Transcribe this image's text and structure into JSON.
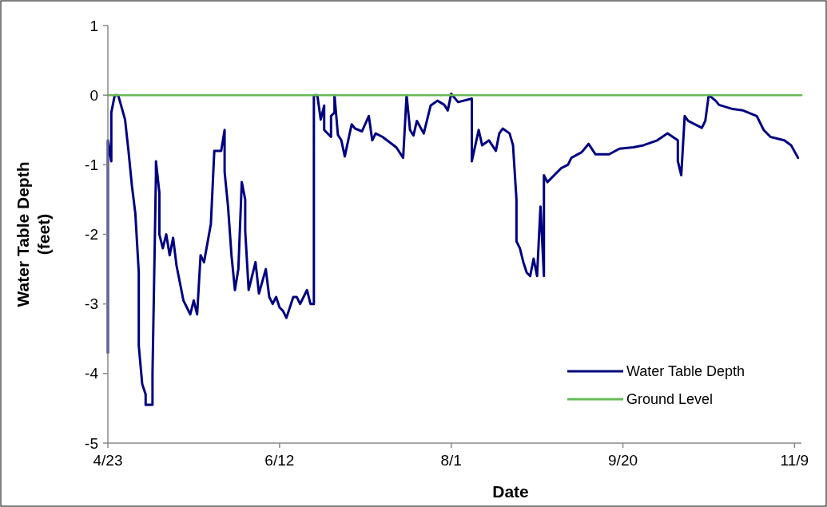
{
  "chart_data": {
    "type": "line",
    "xlabel": "Date",
    "ylabel": "Water Table Depth (feet)",
    "xlim": [
      "--04-23",
      "--11-11"
    ],
    "xticks": [
      {
        "value": "--04-23",
        "label": "4/23"
      },
      {
        "value": "--06-12",
        "label": "6/12"
      },
      {
        "value": "--08-01",
        "label": "8/1"
      },
      {
        "value": "--09-20",
        "label": "9/20"
      },
      {
        "value": "--11-09",
        "label": "11/9"
      }
    ],
    "ylim": [
      -5,
      1
    ],
    "yticks": [
      -5,
      -4,
      -3,
      -2,
      -1,
      0,
      1
    ],
    "grid": false,
    "legend": "bottom right",
    "marker": "none",
    "series": [
      {
        "name": "Water Table Depth",
        "color": "#000080",
        "x": [
          "--04-23",
          "--04-23",
          "--04-24",
          "--04-24",
          "--04-25",
          "--04-26",
          "--04-28",
          "--04-29",
          "--04-30",
          "--05-01",
          "--05-02",
          "--05-02",
          "--05-03",
          "--05-04",
          "--05-04",
          "--05-06",
          "--05-06",
          "--05-07",
          "--05-07",
          "--05-08",
          "--05-08",
          "--05-09",
          "--05-10",
          "--05-11",
          "--05-12",
          "--05-13",
          "--05-14",
          "--05-15",
          "--05-16",
          "--05-17",
          "--05-18",
          "--05-19",
          "--05-20",
          "--05-21",
          "--05-23",
          "--05-24",
          "--05-26",
          "--05-27",
          "--05-27",
          "--05-28",
          "--05-29",
          "--05-30",
          "--05-31",
          "--06-01",
          "--06-02",
          "--06-02",
          "--06-03",
          "--06-05",
          "--06-06",
          "--06-08",
          "--06-09",
          "--06-10",
          "--06-11",
          "--06-12",
          "--06-13",
          "--06-14",
          "--06-16",
          "--06-17",
          "--06-18",
          "--06-20",
          "--06-21",
          "--06-22",
          "--06-22",
          "--06-22",
          "--06-23",
          "--06-24",
          "--06-25",
          "--06-25",
          "--06-27",
          "--06-27",
          "--06-28",
          "--06-28",
          "--06-29",
          "--06-30",
          "--07-01",
          "--07-03",
          "--07-04",
          "--07-06",
          "--07-08",
          "--07-09",
          "--07-10",
          "--07-12",
          "--07-16",
          "--07-18",
          "--07-19",
          "--07-20",
          "--07-21",
          "--07-22",
          "--07-24",
          "--07-26",
          "--07-28",
          "--07-30",
          "--07-31",
          "--08-01",
          "--08-03",
          "--08-07",
          "--08-07",
          "--08-09",
          "--08-10",
          "--08-12",
          "--08-14",
          "--08-15",
          "--08-16",
          "--08-18",
          "--08-19",
          "--08-20",
          "--08-20",
          "--08-21",
          "--08-22",
          "--08-23",
          "--08-24",
          "--08-25",
          "--08-26",
          "--08-27",
          "--08-28",
          "--08-28",
          "--08-29",
          "--09-02",
          "--09-04",
          "--09-05",
          "--09-08",
          "--09-10",
          "--09-12",
          "--09-16",
          "--09-19",
          "--09-23",
          "--09-26",
          "--09-30",
          "--10-03",
          "--10-06",
          "--10-06",
          "--10-07",
          "--10-08",
          "--10-09",
          "--10-13",
          "--10-14",
          "--10-15",
          "--10-17",
          "--10-18",
          "--10-22",
          "--10-25",
          "--10-29",
          "--10-31",
          "--11-02",
          "--11-06",
          "--11-08",
          "--11-10"
        ],
        "values": [
          -3.7,
          -0.65,
          -0.95,
          -0.25,
          0,
          0,
          -0.35,
          -0.8,
          -1.3,
          -1.7,
          -2.55,
          -3.6,
          -4.15,
          -4.3,
          -4.45,
          -4.45,
          -4.0,
          -1.15,
          -0.95,
          -1.4,
          -2.0,
          -2.2,
          -2.0,
          -2.3,
          -2.05,
          -2.45,
          -2.7,
          -2.95,
          -3.05,
          -3.15,
          -2.95,
          -3.15,
          -2.3,
          -2.4,
          -1.85,
          -0.8,
          -0.8,
          -0.5,
          -1.1,
          -1.6,
          -2.3,
          -2.8,
          -2.5,
          -1.25,
          -1.5,
          -1.95,
          -2.8,
          -2.4,
          -2.85,
          -2.5,
          -2.9,
          -3.0,
          -2.9,
          -3.05,
          -3.1,
          -3.2,
          -2.9,
          -2.9,
          -3.0,
          -2.8,
          -3.0,
          -3.0,
          -1.3,
          0,
          0,
          -0.35,
          -0.15,
          -0.5,
          -0.6,
          -0.3,
          -0.25,
          0,
          -0.57,
          -0.65,
          -0.88,
          -0.42,
          -0.48,
          -0.52,
          -0.3,
          -0.65,
          -0.55,
          -0.6,
          -0.75,
          -0.9,
          0,
          -0.5,
          -0.58,
          -0.37,
          -0.55,
          -0.15,
          -0.08,
          -0.14,
          -0.22,
          0.02,
          -0.1,
          -0.05,
          -0.95,
          -0.5,
          -0.72,
          -0.65,
          -0.8,
          -0.55,
          -0.48,
          -0.55,
          -0.72,
          -1.5,
          -2.1,
          -2.2,
          -2.4,
          -2.55,
          -2.6,
          -2.35,
          -2.6,
          -1.6,
          -2.6,
          -1.15,
          -1.25,
          -1.05,
          -1.0,
          -0.9,
          -0.82,
          -0.7,
          -0.85,
          -0.85,
          -0.77,
          -0.75,
          -0.72,
          -0.65,
          -0.55,
          -0.65,
          -0.95,
          -1.15,
          -0.3,
          -0.37,
          -0.47,
          -0.37,
          0,
          -0.08,
          -0.14,
          -0.2,
          -0.22,
          -0.3,
          -0.5,
          -0.6,
          -0.65,
          -0.72,
          -0.9
        ]
      },
      {
        "name": "Ground Level",
        "color": "#66bb55",
        "x": [
          "--04-23",
          "--11-11"
        ],
        "values": [
          0,
          0
        ]
      }
    ]
  }
}
